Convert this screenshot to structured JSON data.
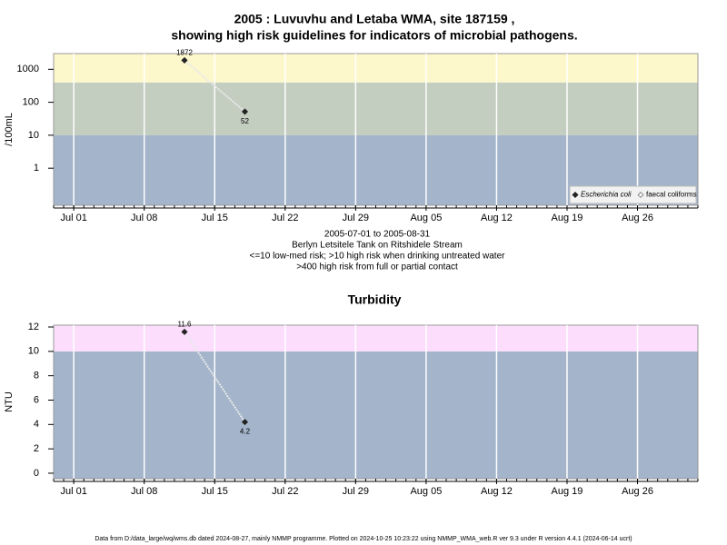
{
  "chart_data": [
    {
      "type": "line",
      "title": [
        "2005 : Luvuvhu and Letaba WMA, site 187159 ,",
        "showing high risk guidelines for indicators of microbial pathogens."
      ],
      "y_label": "/100mL",
      "log_scale": true,
      "annotations": [
        "2005-07-01 to 2005-08-31",
        "Berlyn Letsitele Tank on Ritshidele Stream",
        "<=10 low-med risk; >10 high risk when drinking untreated water",
        ">400 high risk from full or partial contact"
      ],
      "x": [
        "Jul 12",
        "Jul 18"
      ],
      "series": [
        {
          "name": "Escherichia coli",
          "color": "#222222",
          "values": [
            1872,
            52
          ]
        },
        {
          "name": "faecal coliforms",
          "color": "#888888",
          "values": [
            null,
            null
          ]
        }
      ],
      "xlim": [
        "Jun 29",
        "Sep 01"
      ],
      "xticks": [
        "Jul 01",
        "Jul 08",
        "Jul 15",
        "Jul 22",
        "Jul 29",
        "Aug 05",
        "Aug 12",
        "Aug 19",
        "Aug 26"
      ],
      "ylim": [
        0.075,
        3000
      ],
      "yticks": [
        1,
        10,
        100,
        1000
      ],
      "thresholds": [
        10,
        400
      ],
      "band_colors": [
        "#a3b4cb",
        "#c3cdc0",
        "#fdf8cc"
      ],
      "grid": true,
      "legend": "bottom-right"
    },
    {
      "type": "line",
      "title": [
        "Turbidity"
      ],
      "y_label": "NTU",
      "log_scale": false,
      "x": [
        "Jul 12",
        "Jul 18"
      ],
      "series": [
        {
          "name": "Turbidity",
          "color": "#222222",
          "values": [
            11.6,
            4.2
          ]
        }
      ],
      "xlim": [
        "Jun 29",
        "Sep 01"
      ],
      "xticks": [
        "Jul 01",
        "Jul 08",
        "Jul 15",
        "Jul 22",
        "Jul 29",
        "Aug 05",
        "Aug 12",
        "Aug 19",
        "Aug 26"
      ],
      "ylim": [
        -0.45,
        12.15
      ],
      "yticks": [
        0,
        2,
        4,
        6,
        8,
        10,
        12
      ],
      "thresholds": [
        10
      ],
      "band_colors": [
        "#a3b4cb",
        "#fcdefc"
      ],
      "grid": true
    },
    {
      "type": "text",
      "footer": "Data from D:/data_large/wq/wms.db dated 2024-08-27, mainly NMMP programme. Plotted on 2024-10-25 10:23:22 using NMMP_WMA_web.R ver 9.3 under R version 4.4.1 (2024-06-14 ucrt)"
    }
  ]
}
